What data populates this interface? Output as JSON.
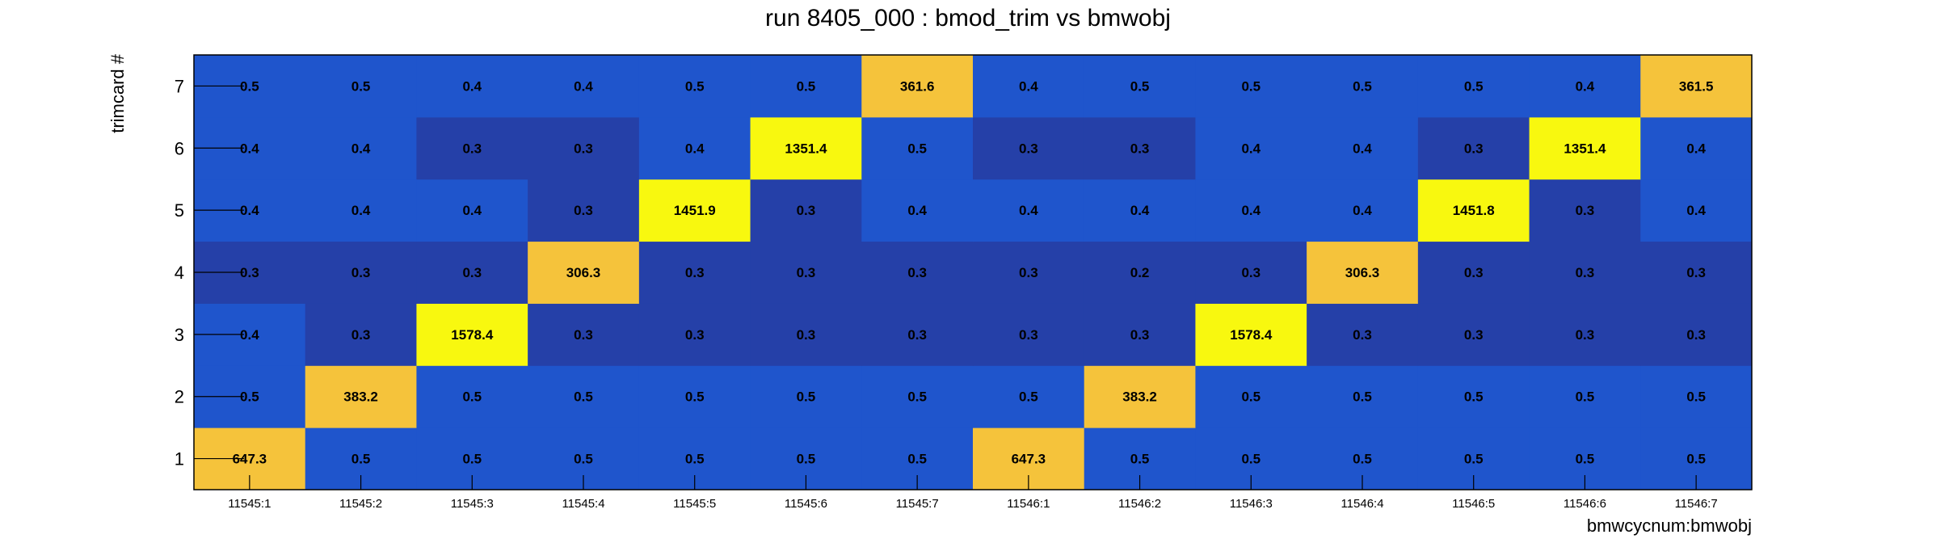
{
  "chart_data": {
    "type": "heatmap",
    "title": "run 8405_000 : bmod_trim vs bmwobj",
    "xlabel": "bmwcycnum:bmwobj",
    "ylabel": "trimcard #",
    "x": [
      "11545:1",
      "11545:2",
      "11545:3",
      "11545:4",
      "11545:5",
      "11545:6",
      "11545:7",
      "11546:1",
      "11546:2",
      "11546:3",
      "11546:4",
      "11546:5",
      "11546:6",
      "11546:7"
    ],
    "y": [
      "1",
      "2",
      "3",
      "4",
      "5",
      "6",
      "7"
    ],
    "values": [
      [
        "647.3",
        "0.5",
        "0.5",
        "0.5",
        "0.5",
        "0.5",
        "0.5",
        "647.3",
        "0.5",
        "0.5",
        "0.5",
        "0.5",
        "0.5",
        "0.5"
      ],
      [
        "0.5",
        "383.2",
        "0.5",
        "0.5",
        "0.5",
        "0.5",
        "0.5",
        "0.5",
        "383.2",
        "0.5",
        "0.5",
        "0.5",
        "0.5",
        "0.5"
      ],
      [
        "0.4",
        "0.3",
        "1578.4",
        "0.3",
        "0.3",
        "0.3",
        "0.3",
        "0.3",
        "0.3",
        "1578.4",
        "0.3",
        "0.3",
        "0.3",
        "0.3"
      ],
      [
        "0.3",
        "0.3",
        "0.3",
        "306.3",
        "0.3",
        "0.3",
        "0.3",
        "0.3",
        "0.2",
        "0.3",
        "306.3",
        "0.3",
        "0.3",
        "0.3"
      ],
      [
        "0.4",
        "0.4",
        "0.4",
        "0.3",
        "1451.9",
        "0.3",
        "0.4",
        "0.4",
        "0.4",
        "0.4",
        "0.4",
        "1451.8",
        "0.3",
        "0.4"
      ],
      [
        "0.4",
        "0.4",
        "0.3",
        "0.3",
        "0.4",
        "1351.4",
        "0.5",
        "0.3",
        "0.3",
        "0.4",
        "0.4",
        "0.3",
        "1351.4",
        "0.4"
      ],
      [
        "0.5",
        "0.5",
        "0.4",
        "0.4",
        "0.5",
        "0.5",
        "361.6",
        "0.4",
        "0.5",
        "0.5",
        "0.5",
        "0.5",
        "0.4",
        "361.5"
      ]
    ],
    "grid": false,
    "legend": "none",
    "colors": {
      "low": "#2540a8",
      "mid_low": "#1f55cc",
      "high_mid": "#f5c33b",
      "high": "#f8f80f"
    }
  }
}
